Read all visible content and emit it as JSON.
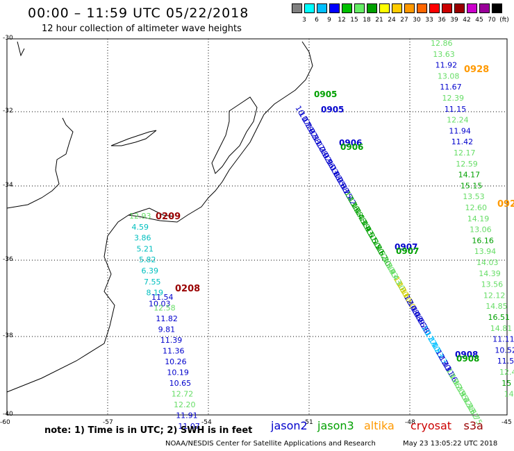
{
  "header": {
    "title": "00:00 – 11:59 UTC 05/22/2018",
    "subtitle": "12 hour collection of altimeter wave heights"
  },
  "color_scale": {
    "colors": [
      "#808080",
      "#00ffff",
      "#00bfff",
      "#0000ff",
      "#00c000",
      "#66ee66",
      "#00a000",
      "#ffff00",
      "#ffcc00",
      "#ff9900",
      "#ff6600",
      "#ff0000",
      "#cc0000",
      "#990000",
      "#cc00cc",
      "#990099",
      "#000000"
    ],
    "ticks": [
      "3",
      "6",
      "9",
      "12",
      "15",
      "18",
      "21",
      "24",
      "27",
      "30",
      "33",
      "36",
      "39",
      "42",
      "45",
      "70",
      "(ft)"
    ]
  },
  "axes": {
    "lat_labels": [
      "-30",
      "-32",
      "-34",
      "-36",
      "-38",
      "-40"
    ],
    "lon_labels": [
      "-60",
      "-57",
      "-54",
      "-51",
      "-48",
      "-45"
    ]
  },
  "tracks": [
    {
      "id": "t1",
      "color": "#00c000",
      "labels": [
        "0905"
      ],
      "values": [
        "12.86",
        "13.63",
        "11.92",
        "13.08",
        "11.67",
        "12.39",
        "11.15",
        "12.24",
        "11.94",
        "11.42",
        "12.17",
        "12.59",
        "14.17",
        "15.15",
        "13.53",
        "12.60",
        "14.19",
        "13.06",
        "16.16",
        "13.94",
        "14.03",
        "14.39",
        "13.56",
        "12.12",
        "14.85",
        "16.51",
        "14.81",
        "11.11",
        "10.52",
        "11.5",
        "12.4",
        "15",
        "14"
      ]
    },
    {
      "id": "t2",
      "label_a": "0928",
      "label_b": "092"
    },
    {
      "id": "t3",
      "label": "0209",
      "values": [
        "12.93",
        "4.59",
        "3.86",
        "5.21",
        "5.82",
        "6.39",
        "7.55",
        "8.19",
        "10.03"
      ]
    },
    {
      "id": "t4",
      "label": "0208",
      "values": [
        "11.54",
        "12.58",
        "11.82",
        "9.81",
        "11.39",
        "11.36",
        "10.26",
        "10.19",
        "10.65",
        "12.72",
        "12.20",
        "11.91",
        "11.07"
      ]
    }
  ],
  "pass_labels": {
    "p0905_green": "0905",
    "p0905_blue": "0905",
    "p0906_blue": "0906",
    "p0906_green": "0906",
    "p0907_blue": "0907",
    "p0907_green": "0907",
    "p0908_blue": "0908",
    "p0908_green": "0908",
    "p0928": "0928",
    "p092": "092",
    "p0209": "0209",
    "p0208": "0208"
  },
  "diag_values": [
    "10.07",
    "11.79",
    "11.22",
    "10.58",
    "12.17",
    "11.28",
    "10.92",
    "10.96",
    "11.03",
    "10.88",
    "11.25",
    "10.58",
    "10.25",
    "11.42",
    "12.16",
    "13.48",
    "15.48",
    "14.19",
    "13.93",
    "14.51",
    "15.50",
    "15.70",
    "15.62",
    "15.30",
    "14.50",
    "13.93",
    "14.43",
    "14.10",
    "13.00",
    "12.60",
    "11.80",
    "12.48",
    "10.48",
    "10.76",
    "10.28",
    "9.20",
    "10.27",
    "11.40",
    "11.53",
    "12.13",
    "12.20",
    "13.11",
    "13.16",
    "13.06",
    "13.20",
    "12.95",
    "13.42",
    "13.78",
    "13.62",
    "13.75"
  ],
  "footer": {
    "note": "note: 1) Time is in UTC; 2) SWH is in feet",
    "legend": [
      {
        "name": "jason2",
        "color": "#0000cc"
      },
      {
        "name": "jason3",
        "color": "#00a000"
      },
      {
        "name": "altika",
        "color": "#ff9900"
      },
      {
        "name": "cryosat",
        "color": "#cc0000"
      },
      {
        "name": "s3a",
        "color": "#990000"
      }
    ],
    "credit": "NOAA/NESDIS Center for Satellite Applications and Research",
    "timestamp": "May 23 13:05:22 UTC 2018"
  }
}
